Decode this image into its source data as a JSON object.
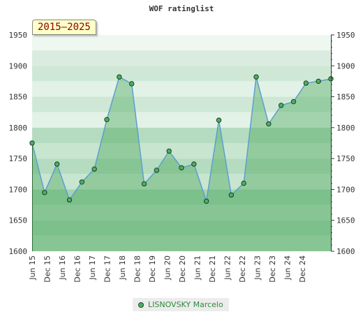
{
  "chart_data": {
    "type": "area",
    "title": "WOF ratinglist",
    "badge": "2015–2025",
    "ylim": [
      1600,
      1950
    ],
    "yticks": [
      1600,
      1650,
      1700,
      1750,
      1800,
      1850,
      1900,
      1950
    ],
    "xlabels": [
      "Jun 15",
      "Dec 15",
      "Jun 16",
      "Dec 16",
      "Jun 17",
      "Dec 17",
      "Jun 18",
      "Dec 18",
      "Dec 19",
      "Jun 20",
      "Dec 20",
      "Jun 21",
      "Dec 21",
      "Jun 22",
      "Dec 22",
      "Jun 23",
      "Dec 23",
      "Jun 24",
      "Dec 24"
    ],
    "grid": true,
    "legend_position": "bottom",
    "series": [
      {
        "name": "LISNOVSKY Marcelo",
        "color": "#4caf60",
        "values": [
          1775,
          1695,
          1741,
          1683,
          1712,
          1733,
          1813,
          1882,
          1871,
          1709,
          1731,
          1762,
          1735,
          1741,
          1681,
          1812,
          1691,
          1710,
          1882,
          1806,
          1836,
          1842,
          1872,
          1875,
          1879
        ]
      }
    ]
  }
}
